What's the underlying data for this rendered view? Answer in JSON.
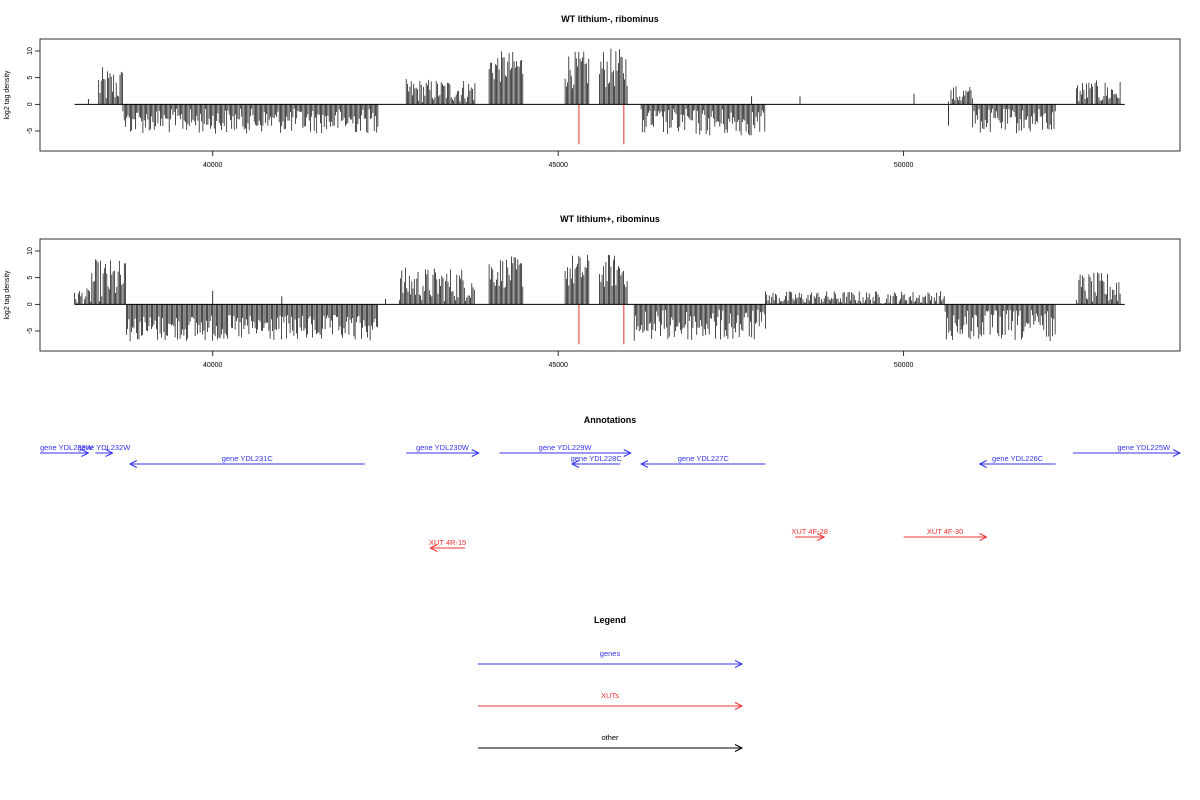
{
  "chart_data": [
    {
      "type": "bar",
      "title": "WT lithium-, ribominus",
      "xlabel": "",
      "ylabel": "log2 tag density",
      "xlim": [
        37500,
        54000
      ],
      "ylim": [
        -8,
        11.5
      ],
      "xticks": [
        40000,
        45000,
        50000
      ],
      "yticks": [
        -5,
        0,
        5,
        10
      ],
      "baseline_range": [
        38000,
        53200
      ],
      "regions": [
        {
          "start": 38350,
          "end": 38700,
          "min": 0,
          "max": 7,
          "sign": 1
        },
        {
          "start": 38700,
          "end": 42400,
          "min": 0.8,
          "max": 5.5,
          "sign": -1
        },
        {
          "start": 42800,
          "end": 43800,
          "min": 0.3,
          "max": 4.8,
          "sign": 1
        },
        {
          "start": 44000,
          "end": 44500,
          "min": 4,
          "max": 10,
          "sign": 1
        },
        {
          "start": 45100,
          "end": 45450,
          "min": 3,
          "max": 10,
          "sign": 1
        },
        {
          "start": 45600,
          "end": 46000,
          "min": 3,
          "max": 10.5,
          "sign": 1
        },
        {
          "start": 46200,
          "end": 48000,
          "min": 0.8,
          "max": 6,
          "sign": -1
        },
        {
          "start": 50650,
          "end": 51000,
          "min": 0,
          "max": 3.5,
          "sign": 1
        },
        {
          "start": 51000,
          "end": 52200,
          "min": 0.8,
          "max": 5.5,
          "sign": -1
        },
        {
          "start": 52500,
          "end": 53150,
          "min": 0,
          "max": 4.5,
          "sign": 1
        }
      ],
      "sparse_points": [
        {
          "x": 38200,
          "y": 1
        },
        {
          "x": 47800,
          "y": 1.5
        },
        {
          "x": 48500,
          "y": 1.5
        },
        {
          "x": 50150,
          "y": 2
        },
        {
          "x": 50650,
          "y": -4
        }
      ],
      "markers": [
        {
          "x": 45300,
          "y": -7.5
        },
        {
          "x": 45950,
          "y": -7.5
        }
      ],
      "marker_color": "#e8534f"
    },
    {
      "type": "bar",
      "title": "WT lithium+, ribominus",
      "xlabel": "",
      "ylabel": "log2 tag density",
      "xlim": [
        37500,
        54000
      ],
      "ylim": [
        -8,
        11.5
      ],
      "xticks": [
        40000,
        45000,
        50000
      ],
      "yticks": [
        -5,
        0,
        5,
        10
      ],
      "baseline_range": [
        38000,
        53200
      ],
      "regions": [
        {
          "start": 38000,
          "end": 38250,
          "min": 0,
          "max": 3,
          "sign": 1
        },
        {
          "start": 38250,
          "end": 38750,
          "min": 0.5,
          "max": 8.5,
          "sign": 1
        },
        {
          "start": 38750,
          "end": 42400,
          "min": 2,
          "max": 7,
          "sign": -1
        },
        {
          "start": 42700,
          "end": 43800,
          "min": 0.5,
          "max": 7,
          "sign": 1
        },
        {
          "start": 44000,
          "end": 44500,
          "min": 3,
          "max": 9,
          "sign": 1
        },
        {
          "start": 45100,
          "end": 45450,
          "min": 3,
          "max": 9.5,
          "sign": 1
        },
        {
          "start": 45600,
          "end": 46000,
          "min": 3,
          "max": 9.5,
          "sign": 1
        },
        {
          "start": 46100,
          "end": 48000,
          "min": 1,
          "max": 7,
          "sign": -1
        },
        {
          "start": 48000,
          "end": 50600,
          "min": 0,
          "max": 2.5,
          "sign": 1
        },
        {
          "start": 50600,
          "end": 52200,
          "min": 1,
          "max": 7,
          "sign": -1
        },
        {
          "start": 52500,
          "end": 53150,
          "min": 0,
          "max": 6,
          "sign": 1
        }
      ],
      "sparse_points": [
        {
          "x": 40000,
          "y": 2.5
        },
        {
          "x": 41000,
          "y": 1.5
        },
        {
          "x": 42500,
          "y": 1
        }
      ],
      "markers": [
        {
          "x": 45300,
          "y": -7.5
        },
        {
          "x": 45950,
          "y": -7.5
        }
      ],
      "marker_color": "#e8534f"
    }
  ],
  "annotations": {
    "title": "Annotations",
    "xlim": [
      37500,
      54000
    ],
    "genes": [
      {
        "label": "gene YDL233W",
        "start": 37100,
        "end": 38200,
        "dir": 1,
        "row": 0
      },
      {
        "label": "gene YDL232W",
        "start": 38300,
        "end": 38550,
        "dir": 1,
        "row": 0
      },
      {
        "label": "gene YDL231C",
        "start": 38800,
        "end": 42200,
        "dir": -1,
        "row": 1
      },
      {
        "label": "gene YDL230W",
        "start": 42800,
        "end": 43850,
        "dir": 1,
        "row": 0
      },
      {
        "label": "gene YDL229W",
        "start": 44150,
        "end": 46050,
        "dir": 1,
        "row": 0
      },
      {
        "label": "gene YDL228C",
        "start": 45200,
        "end": 45900,
        "dir": -1,
        "row": 1
      },
      {
        "label": "gene YDL227C",
        "start": 46200,
        "end": 48000,
        "dir": -1,
        "row": 1
      },
      {
        "label": "gene YDL226C",
        "start": 51100,
        "end": 52200,
        "dir": -1,
        "row": 1
      },
      {
        "label": "gene YDL225W",
        "start": 52450,
        "end": 54500,
        "dir": 1,
        "row": 0
      }
    ],
    "xuts": [
      {
        "label": "XUT 4R-15",
        "start": 43150,
        "end": 43650,
        "dir": -1,
        "row": 3
      },
      {
        "label": "XUT 4F-28",
        "start": 48430,
        "end": 48850,
        "dir": 1,
        "row": 2
      },
      {
        "label": "XUT 4F-30",
        "start": 50000,
        "end": 51200,
        "dir": 1,
        "row": 2
      }
    ]
  },
  "legend": {
    "title": "Legend",
    "items": [
      {
        "label": "genes",
        "color": "#3333ee"
      },
      {
        "label": "XUTs",
        "color": "#ee3333"
      },
      {
        "label": "other",
        "color": "#000000"
      }
    ]
  }
}
